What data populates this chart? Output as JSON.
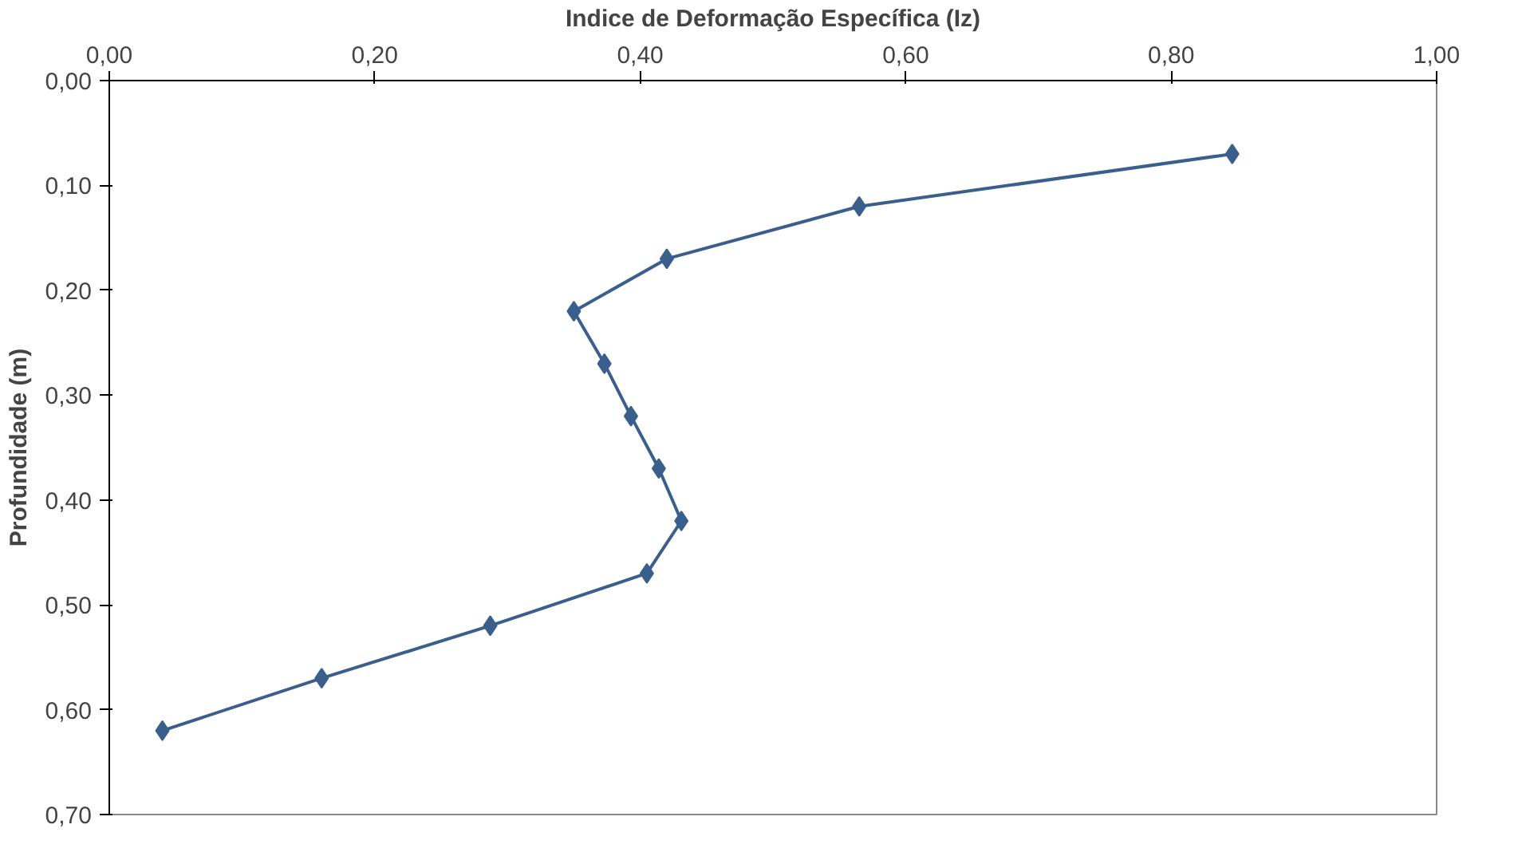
{
  "chart_data": {
    "type": "line",
    "xlabel": "Indice de Deformação Específica (Iz)",
    "ylabel": "Profundidade (m)",
    "x": [
      0.846,
      0.565,
      0.42,
      0.35,
      0.373,
      0.393,
      0.414,
      0.431,
      0.405,
      0.287,
      0.16,
      0.04
    ],
    "series": [
      {
        "color": "#3b5f8c",
        "values": [
          0.07,
          0.12,
          0.17,
          0.22,
          0.27,
          0.32,
          0.37,
          0.42,
          0.47,
          0.52,
          0.57,
          0.62
        ]
      }
    ],
    "xlim": [
      0,
      1
    ],
    "xticks": [
      {
        "value": 0,
        "label": "0,00"
      },
      {
        "value": 0.2,
        "label": "0,20"
      },
      {
        "value": 0.4,
        "label": "0,40"
      },
      {
        "value": 0.6,
        "label": "0,60"
      },
      {
        "value": 0.8,
        "label": "0,80"
      },
      {
        "value": 1,
        "label": "1,00"
      }
    ],
    "ylim": [
      0.7,
      0
    ],
    "yticks": [
      {
        "value": 0,
        "label": "0,00"
      },
      {
        "value": 0.1,
        "label": "0,10"
      },
      {
        "value": 0.2,
        "label": "0,20"
      },
      {
        "value": 0.3,
        "label": "0,30"
      },
      {
        "value": 0.4,
        "label": "0,40"
      },
      {
        "value": 0.5,
        "label": "0,50"
      },
      {
        "value": 0.6,
        "label": "0,60"
      },
      {
        "value": 0.7,
        "label": "0,70"
      }
    ],
    "grid": false,
    "marker": "diamond",
    "line_style": "solid"
  }
}
